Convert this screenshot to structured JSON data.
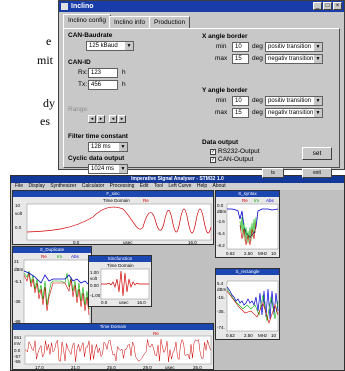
{
  "doc_fragments": [
    "e",
    "mit",
    "dy",
    "es"
  ],
  "inclino": {
    "title": "Inclino",
    "tabs": [
      "Inclino config",
      "Inclino info",
      "Production"
    ],
    "can_baud_label": "CAN-Baudrate",
    "can_baud_value": "125 kBaud",
    "can_id_label": "CAN-ID",
    "rx_label": "Rx:",
    "rx_value": "123",
    "tx_label": "Tx:",
    "tx_value": "456",
    "hex_unit": "h",
    "range_label": "Range",
    "filter_label": "Filter time constant",
    "filter_value": "128 ms",
    "cyclic_label": "Cyclic data output",
    "cyclic_value": "1024 ms",
    "x_border_label": "X angle border",
    "y_border_label": "Y angle border",
    "min_label": "min",
    "max_label": "max",
    "deg_label": "deg",
    "x_min": "10",
    "x_max": "15",
    "x_min_trans": "positiv transition",
    "x_max_trans": "negativ transition",
    "y_min": "10",
    "y_max": "15",
    "y_min_trans": "positiv transition",
    "y_max_trans": "negativ transition",
    "data_output_label": "Data output",
    "rs232_label": "RS232-Output",
    "can_out_label": "CAN-Output",
    "set_button": "set",
    "exit_button": "exit"
  },
  "signal": {
    "title": "Imperative Signal Analyser - STM32 1.0",
    "menu": [
      "File",
      "Display",
      "Synthesizer",
      "Calculator",
      "Processing",
      "Edit",
      "Tool",
      "Left Curve",
      "Help",
      "About"
    ],
    "panels": {
      "p1_title": "F_sinc",
      "p1_sub": "Time Domain",
      "p1_re": "Re",
      "p2_title": "S_Duplicate",
      "p2_re": "Re",
      "p2_im": "Im",
      "p2_abs": "Abs",
      "p3_title": "Sincfunction",
      "p3_sub": "Time Domain",
      "p4_title": "S_syntax",
      "p4_re": "Re",
      "p4_im": "Im",
      "p4_abs": "Abs",
      "p5_title": "S_rectangle",
      "p6_sub": "Time Domain",
      "p6_re": "Re"
    },
    "ticks": {
      "p1_y": [
        "10",
        "volt",
        "0.0"
      ],
      "p2_y": [
        "21",
        "dBm",
        "-5.1",
        "-36",
        "-88"
      ],
      "p2_x": [
        "0.62",
        "2.50",
        "MHz",
        "10"
      ],
      "p3_y": [
        "1.00",
        "volt",
        "0.00",
        "-1.00"
      ],
      "p3_x": [
        "0.0",
        "usec",
        "16.0"
      ],
      "p4_y": [
        "0.0",
        "dBm",
        "-2.6",
        "-5.4",
        "-8.2"
      ],
      "p4_x": [
        "0.62",
        "2.50",
        "MHz",
        "10"
      ],
      "p5_y": [
        "5.4",
        "dBm",
        "-15.",
        "-35.",
        "-74."
      ],
      "p5_x": [
        "0.62",
        "2.50",
        "MHz",
        "10"
      ],
      "p6_y": [
        "551",
        "mV",
        "0.0",
        "-57",
        "-55"
      ],
      "p6_x": [
        "17.0",
        "21.0",
        "25.0",
        "29.0",
        "usec",
        "35.0"
      ],
      "p1_x": [
        "0.0",
        "usec",
        "16.0"
      ]
    },
    "exit_button": "exit",
    "side_button": "ts"
  }
}
